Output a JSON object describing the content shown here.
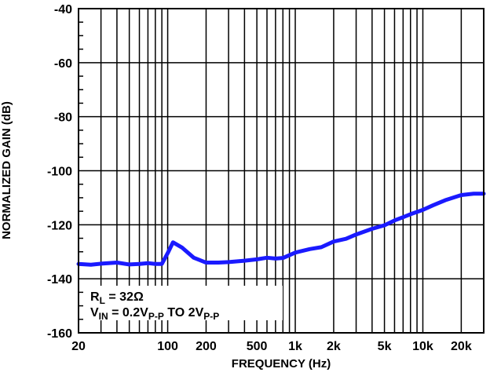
{
  "chart_data": {
    "type": "line",
    "xscale": "log",
    "xlabel": "FREQUENCY (Hz)",
    "ylabel": "NORMALIZED GAIN (dB)",
    "xlim": [
      20,
      30000
    ],
    "ylim": [
      -160,
      -40
    ],
    "y_ticks": [
      -40,
      -60,
      -80,
      -100,
      -120,
      -140,
      -160
    ],
    "x_tick_labels": [
      {
        "value": 20,
        "label": "20"
      },
      {
        "value": 100,
        "label": "100"
      },
      {
        "value": 200,
        "label": "200"
      },
      {
        "value": 500,
        "label": "500"
      },
      {
        "value": 1000,
        "label": "1k"
      },
      {
        "value": 2000,
        "label": "2k"
      },
      {
        "value": 5000,
        "label": "5k"
      },
      {
        "value": 10000,
        "label": "10k"
      },
      {
        "value": 20000,
        "label": "20k"
      }
    ],
    "grid": true,
    "series": [
      {
        "color": "#1a1aff",
        "points": [
          [
            20,
            -134.5
          ],
          [
            25,
            -134.8
          ],
          [
            30,
            -134.4
          ],
          [
            40,
            -134.0
          ],
          [
            50,
            -134.7
          ],
          [
            60,
            -134.5
          ],
          [
            70,
            -134.2
          ],
          [
            80,
            -134.5
          ],
          [
            90,
            -134.5
          ],
          [
            100,
            -130.5
          ],
          [
            110,
            -126.5
          ],
          [
            130,
            -128.5
          ],
          [
            160,
            -132.2
          ],
          [
            200,
            -134.0
          ],
          [
            250,
            -134.0
          ],
          [
            300,
            -133.8
          ],
          [
            400,
            -133.3
          ],
          [
            500,
            -132.8
          ],
          [
            600,
            -132.2
          ],
          [
            700,
            -132.5
          ],
          [
            800,
            -132.3
          ],
          [
            1000,
            -130.3
          ],
          [
            1300,
            -129.0
          ],
          [
            1600,
            -128.3
          ],
          [
            2000,
            -126.2
          ],
          [
            2500,
            -125.2
          ],
          [
            3000,
            -123.6
          ],
          [
            4000,
            -121.5
          ],
          [
            5000,
            -120.2
          ],
          [
            6000,
            -118.4
          ],
          [
            7000,
            -117.2
          ],
          [
            8000,
            -116.1
          ],
          [
            10000,
            -114.5
          ],
          [
            12000,
            -112.8
          ],
          [
            15000,
            -110.9
          ],
          [
            20000,
            -109.0
          ],
          [
            25000,
            -108.5
          ],
          [
            30000,
            -108.5
          ]
        ]
      }
    ],
    "annotations": {
      "line1_main": "R",
      "line1_sub": "L",
      "line1_rest": " = 32Ω",
      "line2_main": "V",
      "line2_sub": "IN",
      "line2_mid": " = 0.2V",
      "line2_sub2": "P-P",
      "line2_to": " TO 2V",
      "line2_sub3": "P-P"
    }
  }
}
